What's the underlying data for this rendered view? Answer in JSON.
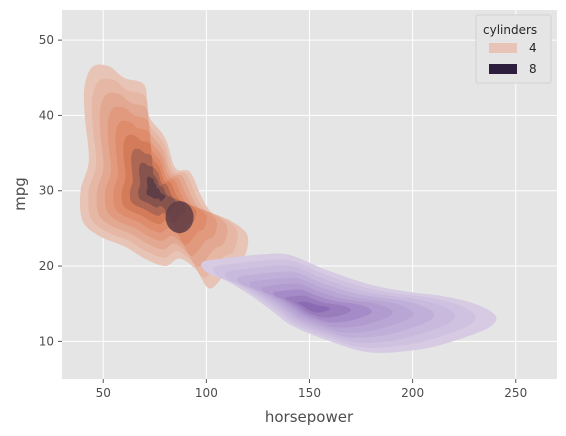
{
  "chart_data": {
    "type": "kde",
    "style": "ggplot",
    "xlabel": "horsepower",
    "ylabel": "mpg",
    "xlim": [
      30,
      270
    ],
    "ylim": [
      5,
      54
    ],
    "xticks": [
      50,
      100,
      150,
      200,
      250
    ],
    "yticks": [
      10,
      20,
      30,
      40,
      50
    ],
    "grid": true,
    "legend": {
      "title": "cylinders",
      "position": "top-right"
    },
    "series": [
      {
        "name": "4",
        "color": "#e8c4b6",
        "dark_color": "#5e3d46",
        "mid_color": "#db7f5b",
        "peak": {
          "x": 75,
          "y": 30
        },
        "secondary_peak": {
          "x": 87,
          "y": 26.5
        },
        "outline": [
          [
            41,
            44
          ],
          [
            45,
            46.5
          ],
          [
            53,
            46.5
          ],
          [
            60,
            45
          ],
          [
            70,
            44
          ],
          [
            72,
            40
          ],
          [
            80,
            37
          ],
          [
            85,
            33
          ],
          [
            92,
            32.5
          ],
          [
            98,
            29
          ],
          [
            103,
            27
          ],
          [
            112,
            26
          ],
          [
            120,
            24
          ],
          [
            118,
            21
          ],
          [
            112,
            20
          ],
          [
            102,
            17
          ],
          [
            95,
            19.5
          ],
          [
            87,
            21
          ],
          [
            80,
            20
          ],
          [
            70,
            21
          ],
          [
            61,
            22.5
          ],
          [
            48,
            24
          ],
          [
            40,
            26
          ],
          [
            39,
            30
          ],
          [
            43,
            34
          ],
          [
            41,
            40
          ]
        ],
        "levels": 9
      },
      {
        "name": "8",
        "color": "#d6cbe3",
        "dark_color": "#8a6bb3",
        "mid_color": "#b39dd1",
        "peak": {
          "x": 150,
          "y": 14.5
        },
        "outline": [
          [
            98,
            20.5
          ],
          [
            108,
            21
          ],
          [
            125,
            21.5
          ],
          [
            140,
            21.5
          ],
          [
            158,
            19.5
          ],
          [
            180,
            17.5
          ],
          [
            200,
            16.5
          ],
          [
            215,
            16
          ],
          [
            230,
            15
          ],
          [
            240,
            13.5
          ],
          [
            238,
            12
          ],
          [
            225,
            10.5
          ],
          [
            205,
            9
          ],
          [
            180,
            8.5
          ],
          [
            160,
            10
          ],
          [
            142,
            12
          ],
          [
            132,
            14
          ],
          [
            122,
            16
          ],
          [
            110,
            18
          ],
          [
            100,
            19.2
          ]
        ],
        "levels": 9
      }
    ]
  }
}
